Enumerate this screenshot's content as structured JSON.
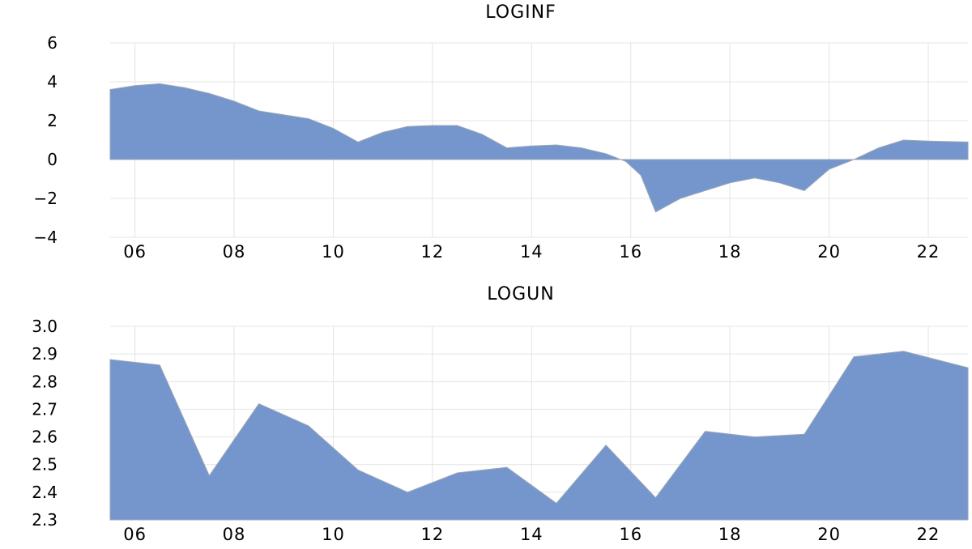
{
  "chart_data": [
    {
      "type": "area",
      "title": "LOGINF",
      "xlabel": "",
      "ylabel": "",
      "xlim": [
        2005.5,
        2022.8
      ],
      "ylim": [
        -4,
        6
      ],
      "yticks": [
        6,
        4,
        2,
        0,
        -2,
        -4
      ],
      "ytick_labels": [
        "6",
        "4",
        "2",
        "0",
        "−2",
        "−4"
      ],
      "xticks": [
        2006,
        2008,
        2010,
        2012,
        2014,
        2016,
        2018,
        2020,
        2022
      ],
      "xtick_labels": [
        "06",
        "08",
        "10",
        "12",
        "14",
        "16",
        "18",
        "20",
        "22"
      ],
      "grid": true,
      "fill_color": "#7596cc",
      "x": [
        2005.5,
        2006.0,
        2006.5,
        2007.0,
        2007.5,
        2008.0,
        2008.5,
        2009.0,
        2009.5,
        2010.0,
        2010.5,
        2011.0,
        2011.5,
        2012.0,
        2012.5,
        2013.0,
        2013.5,
        2014.0,
        2014.5,
        2015.0,
        2015.5,
        2015.9,
        2016.2,
        2016.5,
        2017.0,
        2017.5,
        2018.0,
        2018.5,
        2019.0,
        2019.5,
        2020.0,
        2020.5,
        2021.0,
        2021.5,
        2022.0,
        2022.8
      ],
      "values": [
        3.6,
        3.8,
        3.9,
        3.7,
        3.4,
        3.0,
        2.5,
        2.3,
        2.1,
        1.6,
        0.9,
        1.4,
        1.7,
        1.75,
        1.75,
        1.3,
        0.6,
        0.7,
        0.75,
        0.6,
        0.3,
        -0.1,
        -0.8,
        -2.7,
        -2.0,
        -1.6,
        -1.2,
        -0.95,
        -1.2,
        -1.6,
        -0.5,
        0.0,
        0.6,
        1.0,
        0.95,
        0.9
      ]
    },
    {
      "type": "area",
      "title": "LOGUN",
      "xlabel": "",
      "ylabel": "",
      "xlim": [
        2005.5,
        2022.8
      ],
      "ylim": [
        2.3,
        3.0
      ],
      "yticks": [
        3.0,
        2.9,
        2.8,
        2.7,
        2.6,
        2.5,
        2.4,
        2.3
      ],
      "ytick_labels": [
        "3.0",
        "2.9",
        "2.8",
        "2.7",
        "2.6",
        "2.5",
        "2.4",
        "2.3"
      ],
      "xticks": [
        2006,
        2008,
        2010,
        2012,
        2014,
        2016,
        2018,
        2020,
        2022
      ],
      "xtick_labels": [
        "06",
        "08",
        "10",
        "12",
        "14",
        "16",
        "18",
        "20",
        "22"
      ],
      "grid": true,
      "fill_color": "#7596cc",
      "x": [
        2005.5,
        2006.5,
        2007.5,
        2008.5,
        2009.5,
        2010.5,
        2011.5,
        2012.5,
        2013.5,
        2014.5,
        2015.5,
        2016.5,
        2017.5,
        2018.5,
        2019.5,
        2020.5,
        2021.5,
        2022.8
      ],
      "values": [
        2.88,
        2.86,
        2.46,
        2.72,
        2.64,
        2.48,
        2.4,
        2.47,
        2.49,
        2.36,
        2.57,
        2.38,
        2.62,
        2.6,
        2.61,
        2.89,
        2.91,
        2.85
      ]
    }
  ]
}
